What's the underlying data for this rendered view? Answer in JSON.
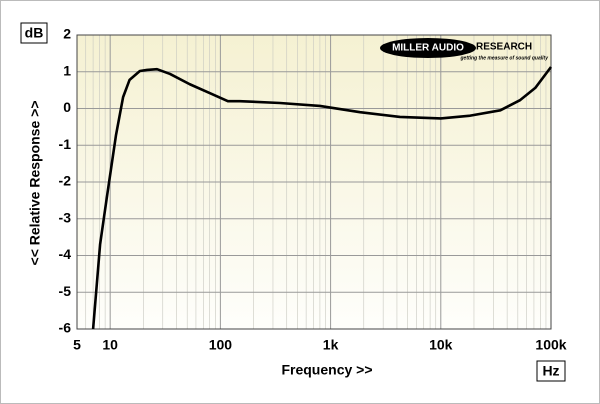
{
  "chart_data": {
    "type": "line",
    "x_label": "Frequency >>",
    "y_label": "<< Relative Response >>",
    "y_unit": "dB",
    "x_unit": "Hz",
    "log_x": true,
    "grid": true,
    "xlim": [
      5,
      100000
    ],
    "ylim": [
      -6,
      2
    ],
    "xticks": [
      5,
      10,
      100,
      {
        "value": 1000,
        "label": "1k"
      },
      {
        "value": 10000,
        "label": "10k"
      },
      {
        "value": 100000,
        "label": "100k"
      }
    ],
    "xminorticks": [
      6,
      7,
      8,
      9,
      20,
      30,
      40,
      50,
      60,
      70,
      80,
      90,
      200,
      300,
      400,
      500,
      600,
      700,
      800,
      900,
      2000,
      3000,
      4000,
      5000,
      6000,
      7000,
      8000,
      9000,
      20000,
      30000,
      40000,
      50000,
      60000,
      70000,
      80000,
      90000
    ],
    "yticks": [
      2,
      1,
      0,
      -1,
      -2,
      -3,
      -4,
      -5,
      -6
    ],
    "series": [
      {
        "color": "#000000",
        "x": [
          7,
          8.1,
          9.4,
          11.3,
          13.1,
          15,
          18.6,
          21.6,
          26.6,
          34.9,
          52.8,
          80,
          117,
          150,
          347,
          800,
          1850,
          4260,
          10000,
          18000,
          34700,
          52600,
          72000,
          100000
        ],
        "values": [
          -6,
          -3.7,
          -2.35,
          -0.72,
          0.31,
          0.78,
          1.02,
          1.05,
          1.07,
          0.94,
          0.66,
          0.42,
          0.2,
          0.2,
          0.15,
          0.07,
          -0.1,
          -0.23,
          -0.27,
          -0.2,
          -0.05,
          0.23,
          0.56,
          1.13
        ]
      }
    ]
  },
  "logo": {
    "left": "MILLER AUDIO",
    "right": "RESEARCH",
    "tagline": "getting the measure of sound quality"
  }
}
